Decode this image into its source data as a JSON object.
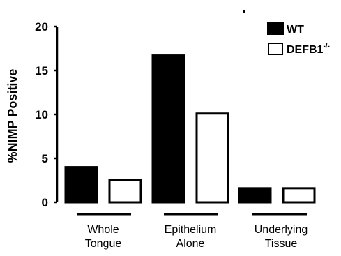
{
  "chart_data": {
    "type": "bar",
    "categories": [
      "Whole Tongue",
      "Epithelium Alone",
      "Underlying Tissue"
    ],
    "category_label_lines": [
      [
        "Whole",
        "Tongue"
      ],
      [
        "Epithelium",
        "Alone"
      ],
      [
        "Underlying",
        "Tissue"
      ]
    ],
    "series": [
      {
        "name": "WT",
        "values": [
          4.0,
          16.7,
          1.6
        ],
        "color": "#000000"
      },
      {
        "name": "DEFB1",
        "name_superscript": "-/-",
        "values": [
          2.5,
          10.1,
          1.6
        ],
        "color": "#ffffff"
      }
    ],
    "ylabel": "%NIMP Positive",
    "xlabel": "",
    "ylim": [
      0,
      20
    ],
    "yticks": [
      "0",
      "5",
      "10",
      "15",
      "20"
    ],
    "grid": false,
    "legend_position": "top-right"
  }
}
